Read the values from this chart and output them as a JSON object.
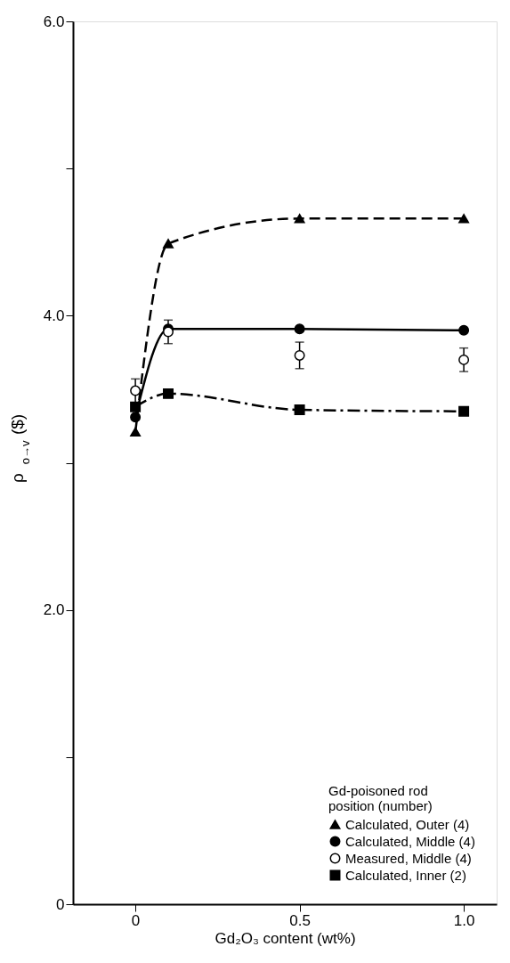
{
  "chart_data": {
    "type": "line",
    "xlabel": "Gd₂O₃ content (wt%)",
    "ylabel": "ρ$_{o→v}$ ($)",
    "legend_title": "Gd-poisoned rod position (number)",
    "x": [
      0,
      0.1,
      0.5,
      1.0
    ],
    "series": [
      {
        "name": "Calculated, Outer (4)",
        "color": "#000000",
        "marker": "triangle",
        "line_style": "dashed",
        "values": [
          3.21,
          4.49,
          4.66,
          4.66
        ]
      },
      {
        "name": "Calculated, Middle (4)",
        "color": "#000000",
        "marker": "circle",
        "line_style": "solid",
        "values": [
          3.31,
          3.91,
          3.91,
          3.9
        ]
      },
      {
        "name": "Measured, Middle (4)",
        "type": "scatter",
        "color": "#000000",
        "marker": "circle",
        "values": [
          3.49,
          3.89,
          3.73,
          3.7
        ],
        "errors": [
          0.08,
          0.08,
          0.09,
          0.08
        ]
      },
      {
        "name": "Calculated, Inner (2)",
        "color": "#000000",
        "marker": "square",
        "line_style": "dotted",
        "values": [
          3.38,
          3.47,
          3.36,
          3.35
        ]
      }
    ],
    "xlim": [
      -0.19,
      1.1
    ],
    "ylim": [
      0,
      6.0
    ],
    "xticks": [
      0,
      0.5,
      {
        "value": 1.0,
        "label": "1.0"
      }
    ],
    "yticks": [
      0,
      {
        "value": 1,
        "label": null
      },
      {
        "value": 2,
        "label": "2.0"
      },
      {
        "value": 3,
        "label": null
      },
      {
        "value": 4,
        "label": "4.0"
      },
      {
        "value": 5,
        "label": null
      },
      {
        "value": 6,
        "label": "6.0"
      }
    ],
    "grid": false,
    "legend": "bottom right"
  }
}
